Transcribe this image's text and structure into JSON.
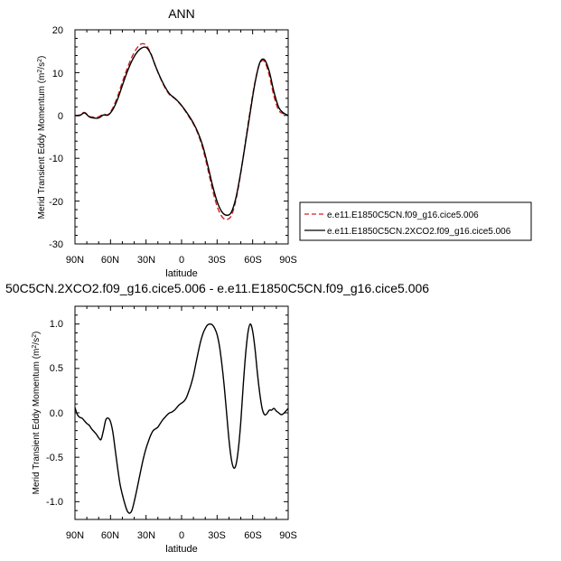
{
  "chart_data": [
    {
      "type": "line",
      "title": "ANN",
      "xlabel": "latitude",
      "ylabel": "Merid Transient Eddy Momentum",
      "yunit_base": "(m",
      "yunit_sup1": "2",
      "yunit_mid": "/s",
      "yunit_sup2": "2",
      "yunit_end": ")",
      "x_ticks": [
        "90N",
        "60N",
        "30N",
        "0",
        "30S",
        "60S",
        "90S"
      ],
      "x_tick_values": [
        90,
        60,
        30,
        0,
        -30,
        -60,
        -90
      ],
      "xlim": [
        90,
        -90
      ],
      "y_ticks": [
        "20",
        "10",
        "0",
        "-10",
        "-20",
        "-30"
      ],
      "y_tick_values": [
        20,
        10,
        0,
        -10,
        -20,
        -30
      ],
      "ylim": [
        -30,
        20
      ],
      "legend": "right",
      "series": [
        {
          "name": "e.e11.E1850C5CN.f09_g16.cice5.006",
          "color": "#d42020",
          "dash": "dashed",
          "x": [
            90,
            86,
            82,
            78,
            74,
            70,
            66,
            62,
            58,
            54,
            50,
            46,
            42,
            38,
            34,
            30,
            26,
            22,
            18,
            14,
            10,
            6,
            2,
            -2,
            -6,
            -10,
            -14,
            -18,
            -22,
            -26,
            -30,
            -34,
            -38,
            -42,
            -46,
            -50,
            -54,
            -58,
            -62,
            -66,
            -70,
            -74,
            -78,
            -82,
            -86,
            -90
          ],
          "y": [
            0,
            0.1,
            0.7,
            -0.2,
            -0.4,
            -0.3,
            0.3,
            0.2,
            1.8,
            4.5,
            7.8,
            10.9,
            13.6,
            15.6,
            16.7,
            16.4,
            14.5,
            11.5,
            8.8,
            6.5,
            4.8,
            4.0,
            2.9,
            1.5,
            -0.2,
            -2.0,
            -4.4,
            -7.8,
            -12.3,
            -17.2,
            -21.2,
            -23.6,
            -24.3,
            -23.4,
            -19.6,
            -13.4,
            -6.0,
            1.3,
            7.8,
            12.1,
            12.6,
            9.4,
            4.5,
            1.2,
            0.4,
            0.1
          ]
        },
        {
          "name": "e.e11.E1850C5CN.2XCO2.f09_g16.cice5.006",
          "color": "#000000",
          "dash": "solid",
          "x": [
            90,
            86,
            82,
            78,
            74,
            70,
            66,
            62,
            58,
            54,
            50,
            46,
            42,
            38,
            34,
            30,
            26,
            22,
            18,
            14,
            10,
            6,
            2,
            -2,
            -6,
            -10,
            -14,
            -18,
            -22,
            -26,
            -30,
            -34,
            -38,
            -42,
            -46,
            -50,
            -54,
            -58,
            -62,
            -66,
            -70,
            -74,
            -78,
            -82,
            -86,
            -90
          ],
          "y": [
            0,
            0.0,
            0.6,
            -0.3,
            -0.6,
            -0.6,
            0.1,
            0.1,
            1.4,
            3.8,
            7.0,
            10.1,
            12.7,
            14.6,
            15.7,
            15.9,
            14.4,
            11.5,
            8.9,
            6.7,
            5.0,
            4.1,
            3.0,
            1.6,
            0.0,
            -1.8,
            -4.1,
            -7.2,
            -11.5,
            -16.2,
            -20.1,
            -22.5,
            -23.3,
            -22.6,
            -19.1,
            -13.2,
            -6.3,
            0.8,
            7.6,
            12.3,
            13.0,
            10.3,
            5.5,
            1.9,
            0.6,
            0.0
          ]
        }
      ]
    },
    {
      "type": "line",
      "title": "50C5CN.2XCO2.f09_g16.cice5.006 - e.e11.E1850C5CN.f09_g16.cice5.006",
      "xlabel": "latitude",
      "ylabel": "Merid Transient Eddy Momentum",
      "yunit_base": "(m",
      "yunit_sup1": "2",
      "yunit_mid": "/s",
      "yunit_sup2": "2",
      "yunit_end": ")",
      "x_ticks": [
        "90N",
        "60N",
        "30N",
        "0",
        "30S",
        "60S",
        "90S"
      ],
      "x_tick_values": [
        90,
        60,
        30,
        0,
        -30,
        -60,
        -90
      ],
      "xlim": [
        90,
        -90
      ],
      "y_ticks": [
        "1.0",
        "0.5",
        "0.0",
        "-0.5",
        "-1.0"
      ],
      "y_tick_values": [
        1.0,
        0.5,
        0.0,
        -0.5,
        -1.0
      ],
      "ylim": [
        -1.2,
        1.2
      ],
      "series": [
        {
          "color": "#000000",
          "x": [
            90,
            88,
            86,
            84,
            82,
            80,
            78,
            76,
            74,
            72,
            70,
            68,
            66,
            64,
            62,
            60,
            58,
            56,
            54,
            52,
            50,
            48,
            46,
            44,
            42,
            40,
            38,
            36,
            34,
            32,
            30,
            28,
            26,
            24,
            22,
            20,
            18,
            16,
            14,
            12,
            10,
            8,
            6,
            4,
            2,
            0,
            -2,
            -4,
            -6,
            -8,
            -10,
            -12,
            -14,
            -16,
            -18,
            -20,
            -22,
            -24,
            -26,
            -28,
            -30,
            -32,
            -34,
            -36,
            -38,
            -40,
            -42,
            -44,
            -46,
            -48,
            -50,
            -52,
            -54,
            -56,
            -58,
            -60,
            -62,
            -64,
            -66,
            -68,
            -70,
            -72,
            -74,
            -76,
            -78,
            -80,
            -82,
            -84,
            -86,
            -88,
            -90
          ],
          "y": [
            0.06,
            -0.02,
            -0.05,
            -0.06,
            -0.09,
            -0.12,
            -0.14,
            -0.18,
            -0.21,
            -0.24,
            -0.28,
            -0.3,
            -0.2,
            -0.08,
            -0.06,
            -0.1,
            -0.22,
            -0.42,
            -0.62,
            -0.8,
            -0.92,
            -1.02,
            -1.1,
            -1.13,
            -1.1,
            -1.0,
            -0.88,
            -0.75,
            -0.62,
            -0.5,
            -0.4,
            -0.32,
            -0.25,
            -0.2,
            -0.18,
            -0.16,
            -0.12,
            -0.08,
            -0.05,
            -0.02,
            0.0,
            0.01,
            0.03,
            0.06,
            0.09,
            0.11,
            0.13,
            0.17,
            0.24,
            0.32,
            0.42,
            0.55,
            0.68,
            0.8,
            0.89,
            0.95,
            0.99,
            1.0,
            0.99,
            0.95,
            0.88,
            0.75,
            0.55,
            0.3,
            0.0,
            -0.3,
            -0.52,
            -0.62,
            -0.58,
            -0.4,
            -0.1,
            0.3,
            0.65,
            0.9,
            1.0,
            0.92,
            0.72,
            0.45,
            0.22,
            0.05,
            -0.02,
            -0.01,
            0.03,
            0.03,
            0.05,
            0.02,
            0.0,
            -0.02,
            -0.01,
            0.02,
            0.05
          ]
        }
      ]
    }
  ]
}
